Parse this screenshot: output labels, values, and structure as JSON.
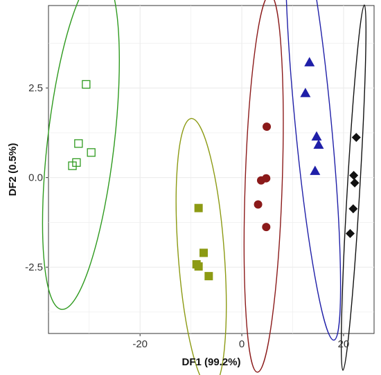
{
  "chart_data": {
    "type": "scatter",
    "xlabel": "DF1 (99.2%)",
    "ylabel": "DF2 (0.5%)",
    "xlim": [
      -38,
      26
    ],
    "ylim": [
      -4.35,
      4.8
    ],
    "x_ticks": [
      -20,
      0,
      20
    ],
    "x_tick_labels": [
      "-20",
      "0",
      "20"
    ],
    "y_ticks": [
      -2.5,
      0.0,
      2.5
    ],
    "y_tick_labels": [
      "-2.5",
      "0.0",
      "2.5"
    ],
    "grid": true,
    "legend": "none",
    "series": [
      {
        "marker": "open-square",
        "color": "#2e9a1e",
        "points": [
          {
            "x": -30.6,
            "y": 2.6
          },
          {
            "x": -32.1,
            "y": 0.95
          },
          {
            "x": -29.6,
            "y": 0.7
          },
          {
            "x": -32.5,
            "y": 0.42
          },
          {
            "x": -33.3,
            "y": 0.33
          }
        ],
        "ellipse": {
          "cx": -31.8,
          "cy": 0.96,
          "rx": 2.3,
          "ry": 2.3,
          "rot": 0
        }
      },
      {
        "marker": "filled-square",
        "color": "#8c9a13",
        "points": [
          {
            "x": -8.5,
            "y": -0.85
          },
          {
            "x": -7.5,
            "y": -2.1
          },
          {
            "x": -8.9,
            "y": -2.42
          },
          {
            "x": -8.5,
            "y": -2.48
          },
          {
            "x": -6.5,
            "y": -2.75
          }
        ],
        "ellipse": {
          "cx": -7.6,
          "cy": -2.1,
          "rx": 2.2,
          "ry": 2.2,
          "rot": 0
        }
      },
      {
        "marker": "filled-circle",
        "color": "#8b1a1a",
        "points": [
          {
            "x": 4.9,
            "y": 1.42
          },
          {
            "x": 3.8,
            "y": -0.08
          },
          {
            "x": 4.8,
            "y": -0.02
          },
          {
            "x": 3.2,
            "y": -0.75
          },
          {
            "x": 4.8,
            "y": -1.38
          }
        ],
        "ellipse": {
          "cx": 4.2,
          "cy": -0.3,
          "rx": 1.8,
          "ry": 1.8,
          "rot": 0
        }
      },
      {
        "marker": "filled-triangle",
        "color": "#1f1fa8",
        "points": [
          {
            "x": 13.3,
            "y": 3.22
          },
          {
            "x": 12.5,
            "y": 2.36
          },
          {
            "x": 14.7,
            "y": 1.15
          },
          {
            "x": 15.1,
            "y": 0.92
          },
          {
            "x": 14.4,
            "y": 0.19
          }
        ],
        "ellipse": {
          "cx": 14.0,
          "cy": 1.55,
          "rx": 2.0,
          "ry": 2.0,
          "rot": 0
        }
      },
      {
        "marker": "filled-diamond",
        "color": "#111111",
        "points": [
          {
            "x": 22.5,
            "y": 1.12
          },
          {
            "x": 22.0,
            "y": 0.06
          },
          {
            "x": 22.2,
            "y": -0.15
          },
          {
            "x": 21.9,
            "y": -0.87
          },
          {
            "x": 21.3,
            "y": -1.56
          }
        ],
        "ellipse": {
          "cx": 21.9,
          "cy": -0.1,
          "rx": 1.2,
          "ry": 1.2,
          "rot": 0
        }
      }
    ]
  }
}
